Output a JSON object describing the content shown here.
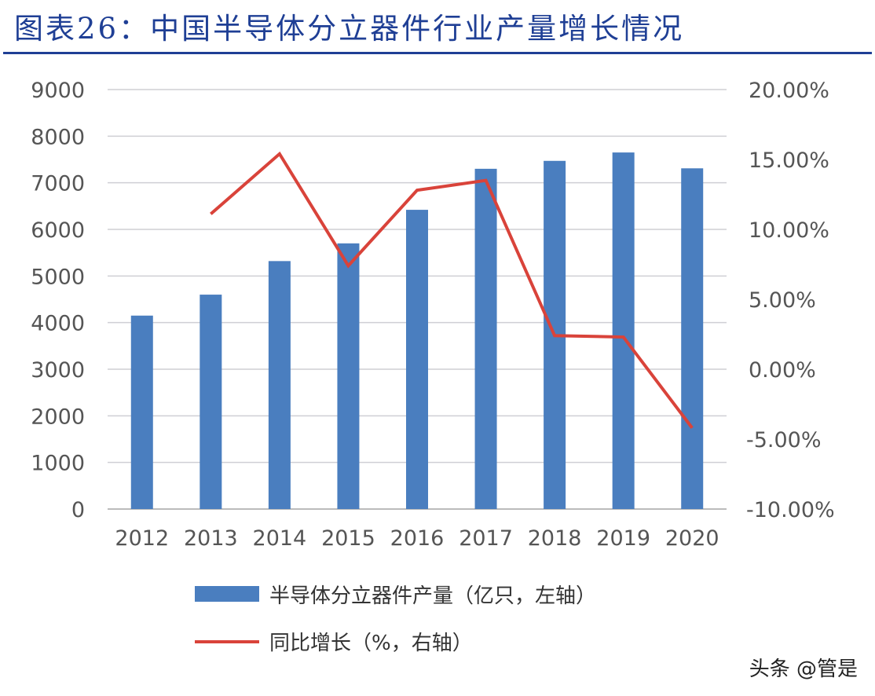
{
  "title": "图表26：中国半导体分立器件行业产量增长情况",
  "watermark": "头条 @管是",
  "chart_data": {
    "type": "bar+line",
    "title": "图表26：中国半导体分立器件行业产量增长情况",
    "categories": [
      "2012",
      "2013",
      "2014",
      "2015",
      "2016",
      "2017",
      "2018",
      "2019",
      "2020"
    ],
    "series": [
      {
        "name": "半导体分立器件产量（亿只，左轴）",
        "type": "bar",
        "axis": "left",
        "color": "#4a7ebf",
        "values": [
          4150,
          4600,
          5320,
          5700,
          6420,
          7300,
          7470,
          7650,
          7310
        ]
      },
      {
        "name": "同比增长（%，右轴）",
        "type": "line",
        "axis": "right",
        "color": "#d9433a",
        "values": [
          null,
          11.1,
          15.4,
          7.4,
          12.8,
          13.5,
          2.4,
          2.3,
          -4.2
        ]
      }
    ],
    "left_axis": {
      "range": [
        0,
        9000
      ],
      "ticks": [
        "0",
        "1000",
        "2000",
        "3000",
        "4000",
        "5000",
        "6000",
        "7000",
        "8000",
        "9000"
      ]
    },
    "right_axis": {
      "range": [
        -10,
        20
      ],
      "ticks": [
        "-10.00%",
        "-5.00%",
        "0.00%",
        "5.00%",
        "10.00%",
        "15.00%",
        "20.00%"
      ]
    },
    "grid": true,
    "legend_placement": "bottom-center"
  }
}
